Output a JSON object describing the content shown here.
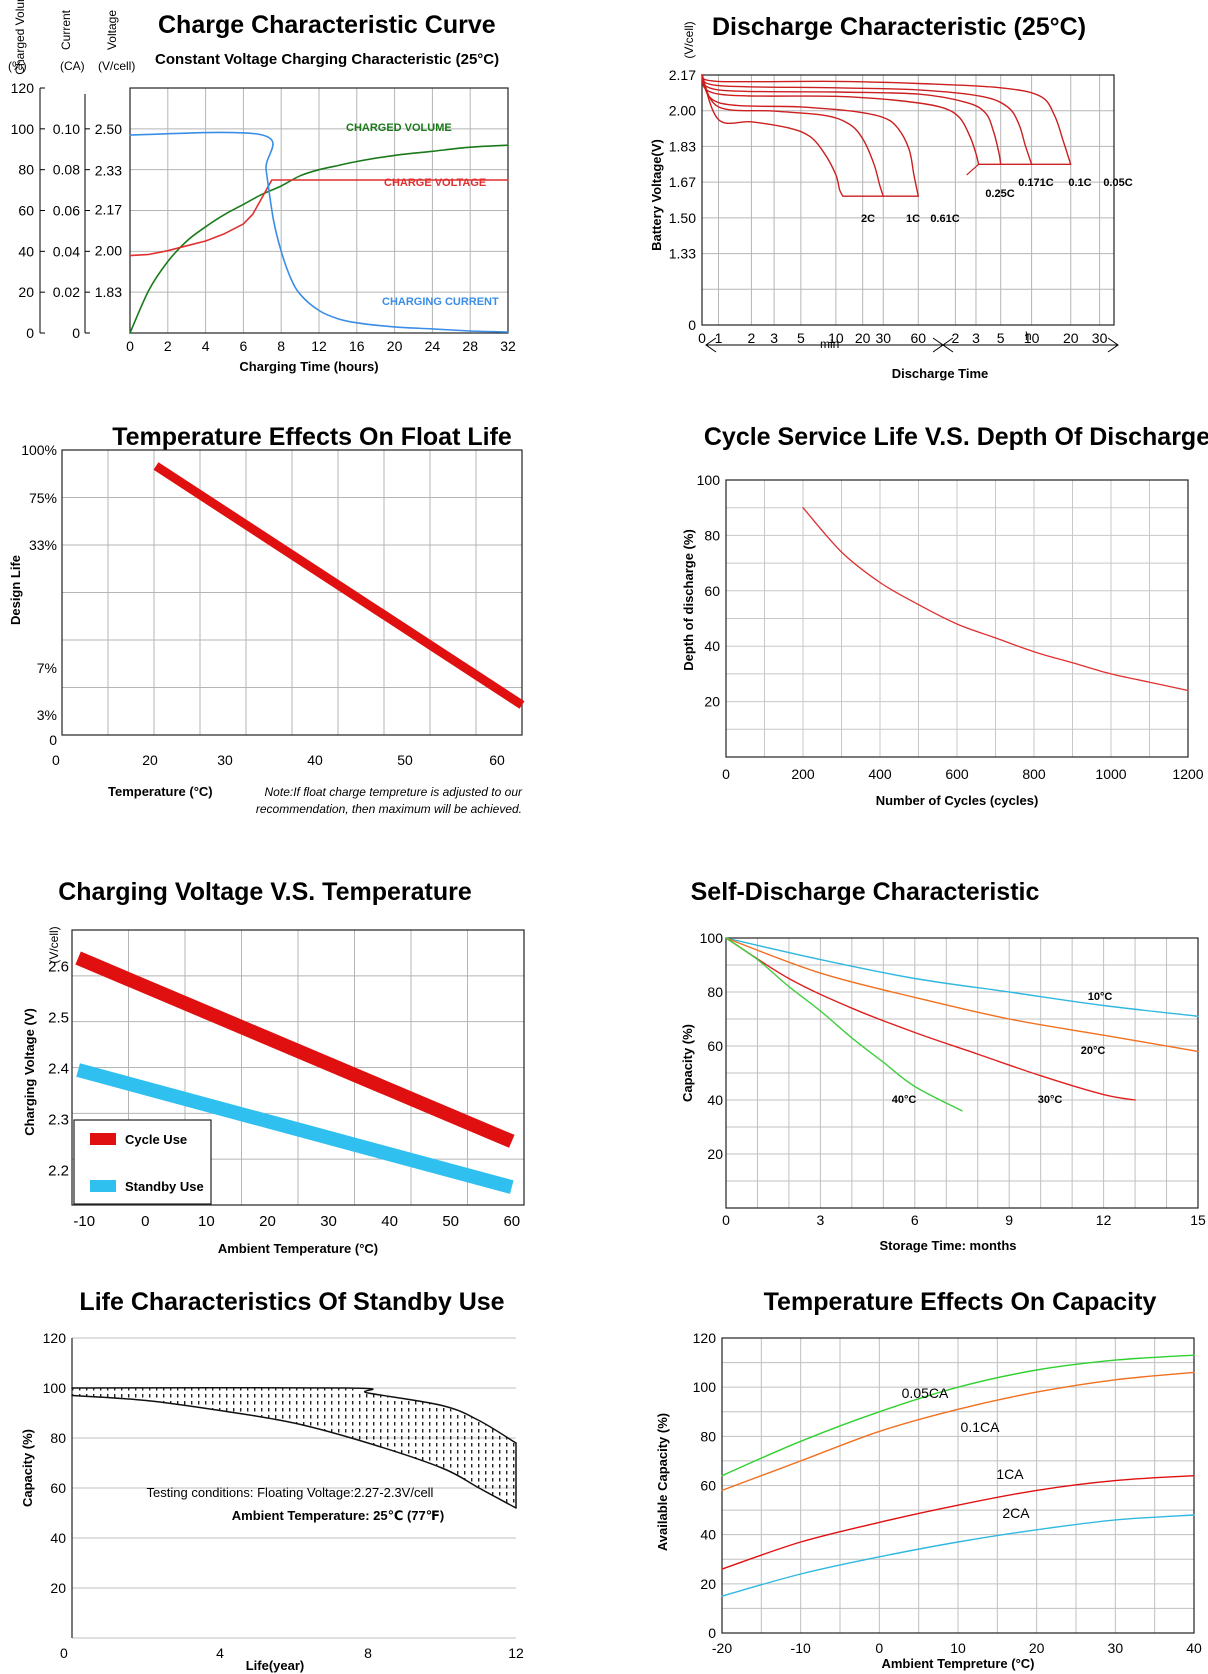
{
  "charts": [
    {
      "id": "charge",
      "title": "Charge Characteristic Curve",
      "subtitle": "Constant Voltage Charging Characteristic (25°C)",
      "xlabel": "Charging Time (hours)",
      "x_ticks": [
        "0",
        "2",
        "4",
        "6",
        "8",
        "12",
        "16",
        "20",
        "24",
        "28",
        "32"
      ],
      "axis_headers": [
        "Charged Volume",
        "(%)",
        "Current",
        "(CA)",
        "Voltage",
        "(V/cell)"
      ],
      "volume_ticks": [
        "120",
        "100",
        "80",
        "60",
        "40",
        "20",
        "0"
      ],
      "current_ticks": [
        "0.10",
        "0.08",
        "0.06",
        "0.04",
        "0.02",
        "0"
      ],
      "voltage_ticks": [
        "2.50",
        "2.33",
        "2.17",
        "2.00",
        "1.83"
      ],
      "series_labels": [
        "CHARGED VOLUME",
        "CHARGE VOLTAGE",
        "CHARGING CURRENT"
      ],
      "colors": {
        "volume": "#1a7a1a",
        "voltage": "#e03030",
        "current": "#3a8ee6"
      },
      "chart_data": {
        "type": "line",
        "x_unit": "hours",
        "xlim": [
          0,
          32
        ],
        "series": [
          {
            "name": "CHARGED VOLUME",
            "axis": "%",
            "x": [
              0,
              1,
              2,
              3,
              4,
              5,
              6,
              7,
              8,
              10,
              12,
              14,
              16,
              20,
              24,
              28,
              32
            ],
            "y": [
              0,
              21,
              35,
              45,
              52,
              58,
              63,
              68,
              72,
              77,
              80,
              82,
              84,
              87,
              89,
              91,
              92
            ]
          },
          {
            "name": "CHARGE VOLTAGE",
            "axis": "V/cell",
            "x": [
              0,
              1,
              2,
              3,
              4,
              5,
              6,
              6.5,
              7,
              7.5,
              32
            ],
            "y": [
              1.98,
              1.985,
              2.0,
              2.02,
              2.04,
              2.07,
              2.11,
              2.15,
              2.22,
              2.29,
              2.29
            ]
          },
          {
            "name": "CHARGING CURRENT",
            "axis": "CA",
            "x": [
              0,
              7,
              7.2,
              7.6,
              8,
              9,
              10,
              12,
              14,
              16,
              20,
              24,
              28,
              32
            ],
            "y": [
              0.097,
              0.097,
              0.08,
              0.055,
              0.04,
              0.027,
              0.019,
              0.011,
              0.007,
              0.005,
              0.003,
              0.002,
              0.001,
              0.0005
            ]
          }
        ]
      }
    },
    {
      "id": "discharge",
      "title": "Discharge Characteristic (25°C)",
      "yunit": "(V/cell)",
      "ylabel": "Battery Voltage(V)",
      "y_ticks": [
        "2.17",
        "2.00",
        "1.83",
        "1.67",
        "1.50",
        "1.33",
        "0"
      ],
      "x_ticks": [
        "0",
        "1",
        "2",
        "3",
        "5",
        "10",
        "20",
        "30",
        "60",
        "2",
        "3",
        "5",
        "10",
        "20",
        "30"
      ],
      "range_labels": [
        "min",
        "h"
      ],
      "xlabel": "Discharge Time",
      "rate_labels": [
        "2C",
        "1C",
        "0.61C",
        "0.25C",
        "0.171C",
        "0.1C",
        "0.05C"
      ],
      "color": "#cc1f1f",
      "chart_data": {
        "type": "line",
        "x_unit": "min (log scale)",
        "end_voltage_levels_v_per_cell": [
          1.6,
          1.6,
          1.6,
          1.75,
          1.75,
          1.75,
          1.75
        ],
        "series": [
          {
            "name": "2C",
            "x": [
              1,
              2,
              4,
              6,
              8,
              10,
              11,
              12
            ],
            "y": [
              1.96,
              1.95,
              1.92,
              1.88,
              1.8,
              1.7,
              1.63,
              1.6
            ]
          },
          {
            "name": "1C",
            "x": [
              1,
              3,
              8,
              14,
              20,
              25,
              28,
              30
            ],
            "y": [
              2.02,
              2.0,
              1.98,
              1.94,
              1.87,
              1.75,
              1.65,
              1.6
            ]
          },
          {
            "name": "0.61C",
            "x": [
              1,
              5,
              15,
              30,
              40,
              50,
              55,
              60
            ],
            "y": [
              2.04,
              2.02,
              2.0,
              1.97,
              1.92,
              1.82,
              1.7,
              1.6
            ]
          },
          {
            "name": "0.25C",
            "x": [
              1,
              10,
              40,
              90,
              130,
              160,
              180,
              190
            ],
            "y": [
              2.08,
              2.07,
              2.05,
              2.02,
              1.97,
              1.88,
              1.8,
              1.75
            ]
          },
          {
            "name": "0.171C",
            "x": [
              1,
              10,
              60,
              150,
              220,
              260,
              290,
              300
            ],
            "y": [
              2.1,
              2.09,
              2.08,
              2.04,
              1.99,
              1.9,
              1.8,
              1.75
            ]
          },
          {
            "name": "0.1C",
            "x": [
              1,
              10,
              60,
              200,
              350,
              450,
              520,
              600
            ],
            "y": [
              2.12,
              2.11,
              2.1,
              2.07,
              2.02,
              1.94,
              1.84,
              1.75
            ]
          },
          {
            "name": "0.05C",
            "x": [
              1,
              10,
              60,
              300,
              700,
              900,
              1050,
              1200
            ],
            "y": [
              2.14,
              2.14,
              2.13,
              2.11,
              2.07,
              1.98,
              1.86,
              1.75
            ]
          }
        ]
      }
    },
    {
      "id": "floatlife",
      "title": "Temperature Effects On Float Life",
      "ylabel": "Design Life",
      "y_ticks": [
        "100%",
        "75%",
        "33%",
        "7%",
        "3%",
        "0"
      ],
      "x_ticks": [
        "20",
        "30",
        "40",
        "50",
        "60"
      ],
      "xlabel": "Temperature (°C)",
      "note_lines": [
        "Note:If float charge tempreture is adjusted to our",
        "recommendation, then maximum will be achieved."
      ],
      "color": "#e01010",
      "chart_data": {
        "type": "line",
        "x": [
          21,
          62.5
        ],
        "y": [
          "100%",
          "5%"
        ]
      }
    },
    {
      "id": "cycle",
      "title": "Cycle Service Life  V.S. Depth Of Discharge",
      "ylabel": "Depth of discharge (%)",
      "y_ticks": [
        "100",
        "80",
        "60",
        "40",
        "20"
      ],
      "x_ticks": [
        "0",
        "200",
        "400",
        "600",
        "800",
        "1000",
        "1200"
      ],
      "xlabel": "Number of Cycles (cycles)",
      "color": "#e03030",
      "chart_data": {
        "type": "line",
        "xlim": [
          0,
          1200
        ],
        "ylim": [
          0,
          100
        ],
        "x": [
          200,
          300,
          400,
          500,
          600,
          700,
          800,
          900,
          1000,
          1100,
          1200
        ],
        "y": [
          90,
          74,
          63,
          55,
          48,
          43,
          38,
          34,
          30,
          27,
          24
        ]
      }
    },
    {
      "id": "chgvolt",
      "title": "Charging Voltage V.S. Temperature",
      "yunit": "(V/cell)",
      "ylabel": "Charging Voltage (V)",
      "y_ticks": [
        "2.6",
        "2.5",
        "2.4",
        "2.3",
        "2.2"
      ],
      "x_ticks": [
        "-10",
        "0",
        "10",
        "20",
        "30",
        "40",
        "50",
        "60"
      ],
      "xlabel": "Ambient Temperature (°C)",
      "legend": [
        "Cycle Use",
        "Standby Use"
      ],
      "colors": {
        "cycle": "#e01010",
        "standby": "#30c0f0"
      },
      "chart_data": {
        "type": "line",
        "xlim": [
          -10,
          60
        ],
        "ylim": [
          2.13,
          2.67
        ],
        "series": [
          {
            "name": "Cycle Use",
            "x": [
              -11,
              60
            ],
            "y": [
              2.615,
              2.255
            ]
          },
          {
            "name": "Standby Use",
            "x": [
              -11,
              60
            ],
            "y": [
              2.395,
              2.165
            ]
          }
        ]
      }
    },
    {
      "id": "selfdis",
      "title": "Self-Discharge Characteristic",
      "ylabel": "Capacity (%)",
      "y_ticks": [
        "100",
        "80",
        "60",
        "40",
        "20"
      ],
      "x_ticks": [
        "0",
        "3",
        "6",
        "9",
        "12",
        "15"
      ],
      "xlabel": "Storage Time: months",
      "series_labels": [
        "10°C",
        "20°C",
        "30°C",
        "40°C"
      ],
      "colors": {
        "10": "#30b8e0",
        "20": "#f07020",
        "30": "#e02020",
        "40": "#40d040"
      },
      "chart_data": {
        "type": "line",
        "xlim": [
          0,
          15
        ],
        "ylim": [
          0,
          100
        ],
        "series": [
          {
            "name": "10°C",
            "x": [
              0,
              3,
              6,
              9,
              12,
              15
            ],
            "y": [
              100,
              92,
              85,
              80,
              75,
              71
            ]
          },
          {
            "name": "20°C",
            "x": [
              0,
              3,
              6,
              9,
              12,
              15
            ],
            "y": [
              100,
              87,
              78,
              70,
              64,
              58
            ]
          },
          {
            "name": "30°C",
            "x": [
              0,
              2,
              4,
              6,
              8,
              10,
              12,
              13
            ],
            "y": [
              100,
              85,
              74,
              65,
              57,
              49,
              42,
              40
            ]
          },
          {
            "name": "40°C",
            "x": [
              0,
              1,
              2,
              3,
              4,
              5,
              6,
              7.5
            ],
            "y": [
              100,
              92,
              82,
              73,
              63,
              54,
              45,
              36
            ]
          }
        ]
      }
    },
    {
      "id": "standby",
      "title": "Life Characteristics Of Standby Use",
      "ylabel": "Capacity (%)",
      "y_ticks": [
        "120",
        "100",
        "80",
        "60",
        "40",
        "20",
        "0"
      ],
      "x_ticks": [
        "4",
        "8",
        "12"
      ],
      "xlabel": "Life(year)",
      "testing_lines": [
        "Testing conditions: Floating Voltage:2.27-2.3V/cell",
        "Ambient Temperature: 25℃ (77℉)"
      ],
      "chart_data": {
        "type": "area",
        "xlim": [
          0,
          12
        ],
        "ylim": [
          0,
          120
        ],
        "series": [
          {
            "name": "upper",
            "x": [
              0,
              7.5,
              8,
              10,
              11,
              12
            ],
            "y": [
              100,
              100,
              98,
              93,
              87,
              78
            ]
          },
          {
            "name": "lower",
            "x": [
              0,
              2,
              4,
              6,
              8,
              10,
              11,
              12
            ],
            "y": [
              97,
              95,
              91,
              86,
              78,
              68,
              60,
              52
            ]
          }
        ]
      }
    },
    {
      "id": "tempcap",
      "title": "Temperature Effects On Capacity",
      "ylabel": "Available Capacity (%)",
      "y_ticks": [
        "120",
        "100",
        "80",
        "60",
        "40",
        "20",
        "0"
      ],
      "x_ticks": [
        "-20",
        "-10",
        "0",
        "10",
        "20",
        "30",
        "40"
      ],
      "xlabel": "Ambient Tempreture  (°C)",
      "series_labels": [
        "0.05CA",
        "0.1CA",
        "1CA",
        "2CA"
      ],
      "colors": {
        "005": "#30d030",
        "01": "#f07020",
        "1": "#e01010",
        "2": "#30b8e0"
      },
      "chart_data": {
        "type": "line",
        "xlim": [
          -20,
          40
        ],
        "ylim": [
          0,
          120
        ],
        "series": [
          {
            "name": "0.05CA",
            "x": [
              -20,
              -10,
              0,
              10,
              20,
              30,
              40
            ],
            "y": [
              64,
              78,
              90,
              100,
              107,
              111,
              113
            ]
          },
          {
            "name": "0.1CA",
            "x": [
              -20,
              -10,
              0,
              10,
              20,
              30,
              40
            ],
            "y": [
              58,
              70,
              82,
              91,
              98,
              103,
              106
            ]
          },
          {
            "name": "1CA",
            "x": [
              -20,
              -10,
              0,
              10,
              20,
              30,
              40
            ],
            "y": [
              26,
              37,
              45,
              52,
              58,
              62,
              64
            ]
          },
          {
            "name": "2CA",
            "x": [
              -20,
              -10,
              0,
              10,
              20,
              30,
              40
            ],
            "y": [
              15,
              24,
              31,
              37,
              42,
              46,
              48
            ]
          }
        ]
      }
    }
  ]
}
